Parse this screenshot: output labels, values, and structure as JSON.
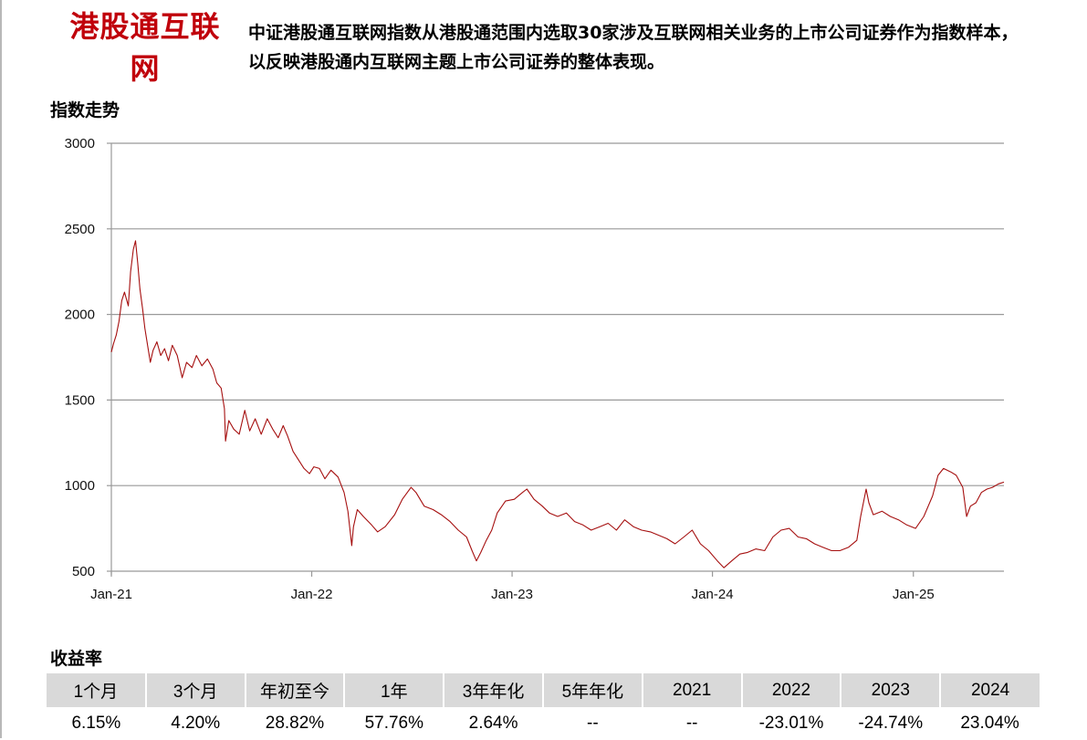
{
  "header": {
    "title": "港股通互联网",
    "description": "中证港股通互联网指数从港股通范围内选取30家涉及互联网相关业务的上市公司证券作为指数样本，以反映港股通内互联网主题上市公司证券的整体表现。"
  },
  "chart_section_title": "指数走势",
  "returns_section_title": "收益率",
  "colors": {
    "title": "#c0000b",
    "line": "#a50f0f",
    "grid": "#999999",
    "header_bg": "#d9d9d9"
  },
  "chart_data": {
    "type": "line",
    "title": "",
    "xlabel": "",
    "ylabel": "",
    "ylim": [
      500,
      3000
    ],
    "yticks": [
      500,
      1000,
      1500,
      2000,
      2500,
      3000
    ],
    "xlim": [
      "2021-01-01",
      "2025-06-15"
    ],
    "xticks": [
      {
        "label": "Jan-21",
        "date": "2021-01-01"
      },
      {
        "label": "Jan-22",
        "date": "2022-01-01"
      },
      {
        "label": "Jan-23",
        "date": "2023-01-01"
      },
      {
        "label": "Jan-24",
        "date": "2024-01-01"
      },
      {
        "label": "Jan-25",
        "date": "2025-01-01"
      }
    ],
    "grid": "horizontal",
    "series": [
      {
        "name": "",
        "points": [
          [
            "2021-01-01",
            1780
          ],
          [
            "2021-01-05",
            1830
          ],
          [
            "2021-01-10",
            1880
          ],
          [
            "2021-01-15",
            1960
          ],
          [
            "2021-01-20",
            2080
          ],
          [
            "2021-01-25",
            2130
          ],
          [
            "2021-02-01",
            2050
          ],
          [
            "2021-02-05",
            2250
          ],
          [
            "2021-02-10",
            2380
          ],
          [
            "2021-02-14",
            2430
          ],
          [
            "2021-02-18",
            2300
          ],
          [
            "2021-02-22",
            2150
          ],
          [
            "2021-02-27",
            2030
          ],
          [
            "2021-03-03",
            1920
          ],
          [
            "2021-03-08",
            1820
          ],
          [
            "2021-03-13",
            1720
          ],
          [
            "2021-03-18",
            1790
          ],
          [
            "2021-03-25",
            1840
          ],
          [
            "2021-04-01",
            1760
          ],
          [
            "2021-04-08",
            1800
          ],
          [
            "2021-04-15",
            1730
          ],
          [
            "2021-04-22",
            1820
          ],
          [
            "2021-05-01",
            1760
          ],
          [
            "2021-05-10",
            1630
          ],
          [
            "2021-05-18",
            1720
          ],
          [
            "2021-05-28",
            1690
          ],
          [
            "2021-06-05",
            1760
          ],
          [
            "2021-06-15",
            1700
          ],
          [
            "2021-06-25",
            1740
          ],
          [
            "2021-07-05",
            1680
          ],
          [
            "2021-07-12",
            1600
          ],
          [
            "2021-07-20",
            1570
          ],
          [
            "2021-07-26",
            1450
          ],
          [
            "2021-07-28",
            1260
          ],
          [
            "2021-08-03",
            1380
          ],
          [
            "2021-08-12",
            1330
          ],
          [
            "2021-08-22",
            1300
          ],
          [
            "2021-09-01",
            1440
          ],
          [
            "2021-09-10",
            1320
          ],
          [
            "2021-09-20",
            1390
          ],
          [
            "2021-10-01",
            1300
          ],
          [
            "2021-10-12",
            1390
          ],
          [
            "2021-10-22",
            1330
          ],
          [
            "2021-11-01",
            1280
          ],
          [
            "2021-11-10",
            1350
          ],
          [
            "2021-11-18",
            1290
          ],
          [
            "2021-11-28",
            1200
          ],
          [
            "2021-12-08",
            1150
          ],
          [
            "2021-12-18",
            1100
          ],
          [
            "2021-12-28",
            1070
          ],
          [
            "2022-01-05",
            1110
          ],
          [
            "2022-01-15",
            1100
          ],
          [
            "2022-01-25",
            1040
          ],
          [
            "2022-02-05",
            1090
          ],
          [
            "2022-02-18",
            1050
          ],
          [
            "2022-03-01",
            960
          ],
          [
            "2022-03-08",
            850
          ],
          [
            "2022-03-15",
            650
          ],
          [
            "2022-03-18",
            760
          ],
          [
            "2022-03-25",
            860
          ],
          [
            "2022-04-05",
            820
          ],
          [
            "2022-04-20",
            770
          ],
          [
            "2022-05-01",
            730
          ],
          [
            "2022-05-15",
            760
          ],
          [
            "2022-06-01",
            830
          ],
          [
            "2022-06-15",
            920
          ],
          [
            "2022-07-01",
            990
          ],
          [
            "2022-07-10",
            960
          ],
          [
            "2022-07-25",
            880
          ],
          [
            "2022-08-10",
            860
          ],
          [
            "2022-08-25",
            830
          ],
          [
            "2022-09-10",
            790
          ],
          [
            "2022-09-25",
            740
          ],
          [
            "2022-10-10",
            700
          ],
          [
            "2022-10-20",
            620
          ],
          [
            "2022-10-28",
            560
          ],
          [
            "2022-11-05",
            610
          ],
          [
            "2022-11-15",
            680
          ],
          [
            "2022-11-25",
            740
          ],
          [
            "2022-12-05",
            840
          ],
          [
            "2022-12-20",
            910
          ],
          [
            "2023-01-05",
            920
          ],
          [
            "2023-01-20",
            960
          ],
          [
            "2023-01-28",
            980
          ],
          [
            "2023-02-10",
            920
          ],
          [
            "2023-02-25",
            880
          ],
          [
            "2023-03-10",
            840
          ],
          [
            "2023-03-25",
            820
          ],
          [
            "2023-04-10",
            840
          ],
          [
            "2023-04-25",
            790
          ],
          [
            "2023-05-10",
            770
          ],
          [
            "2023-05-25",
            740
          ],
          [
            "2023-06-10",
            760
          ],
          [
            "2023-06-25",
            780
          ],
          [
            "2023-07-10",
            740
          ],
          [
            "2023-07-25",
            800
          ],
          [
            "2023-08-10",
            760
          ],
          [
            "2023-08-25",
            740
          ],
          [
            "2023-09-10",
            730
          ],
          [
            "2023-09-25",
            710
          ],
          [
            "2023-10-10",
            690
          ],
          [
            "2023-10-25",
            660
          ],
          [
            "2023-11-10",
            700
          ],
          [
            "2023-11-25",
            740
          ],
          [
            "2023-12-10",
            660
          ],
          [
            "2023-12-25",
            620
          ],
          [
            "2024-01-10",
            560
          ],
          [
            "2024-01-22",
            520
          ],
          [
            "2024-02-05",
            560
          ],
          [
            "2024-02-20",
            600
          ],
          [
            "2024-03-05",
            610
          ],
          [
            "2024-03-20",
            630
          ],
          [
            "2024-04-05",
            620
          ],
          [
            "2024-04-20",
            700
          ],
          [
            "2024-05-05",
            740
          ],
          [
            "2024-05-20",
            750
          ],
          [
            "2024-06-05",
            700
          ],
          [
            "2024-06-20",
            690
          ],
          [
            "2024-07-05",
            660
          ],
          [
            "2024-07-20",
            640
          ],
          [
            "2024-08-05",
            620
          ],
          [
            "2024-08-20",
            620
          ],
          [
            "2024-09-05",
            640
          ],
          [
            "2024-09-20",
            680
          ],
          [
            "2024-09-27",
            820
          ],
          [
            "2024-10-07",
            980
          ],
          [
            "2024-10-12",
            900
          ],
          [
            "2024-10-20",
            830
          ],
          [
            "2024-11-05",
            850
          ],
          [
            "2024-11-20",
            820
          ],
          [
            "2024-12-05",
            800
          ],
          [
            "2024-12-20",
            770
          ],
          [
            "2025-01-05",
            750
          ],
          [
            "2025-01-20",
            820
          ],
          [
            "2025-02-05",
            940
          ],
          [
            "2025-02-15",
            1060
          ],
          [
            "2025-02-25",
            1100
          ],
          [
            "2025-03-10",
            1080
          ],
          [
            "2025-03-20",
            1060
          ],
          [
            "2025-04-01",
            990
          ],
          [
            "2025-04-08",
            820
          ],
          [
            "2025-04-15",
            880
          ],
          [
            "2025-04-25",
            900
          ],
          [
            "2025-05-05",
            960
          ],
          [
            "2025-05-15",
            980
          ],
          [
            "2025-05-25",
            990
          ],
          [
            "2025-06-05",
            1010
          ],
          [
            "2025-06-15",
            1020
          ]
        ]
      }
    ]
  },
  "returns_table": {
    "headers": [
      "1个月",
      "3个月",
      "年初至今",
      "1年",
      "3年年化",
      "5年年化",
      "2021",
      "2022",
      "2023",
      "2024"
    ],
    "values": [
      "6.15%",
      "4.20%",
      "28.82%",
      "57.76%",
      "2.64%",
      "--",
      "--",
      "-23.01%",
      "-24.74%",
      "23.04%"
    ]
  }
}
